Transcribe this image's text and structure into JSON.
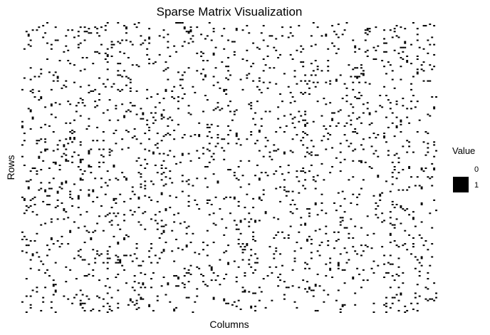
{
  "chart_data": {
    "type": "heatmap",
    "title": "Sparse Matrix Visualization",
    "xlabel": "Columns",
    "ylabel": "Rows",
    "legend": {
      "title": "Value",
      "position": "right",
      "entries": [
        {
          "label": "0",
          "color": "#ffffff"
        },
        {
          "label": "1",
          "color": "#000000"
        }
      ]
    },
    "values": [
      0,
      1
    ],
    "colors": {
      "zero": "#ffffff",
      "one": "#000000"
    },
    "matrix": {
      "rows": 200,
      "cols": 200,
      "density": 0.05
    },
    "grid": false,
    "axis_ticks": false
  }
}
